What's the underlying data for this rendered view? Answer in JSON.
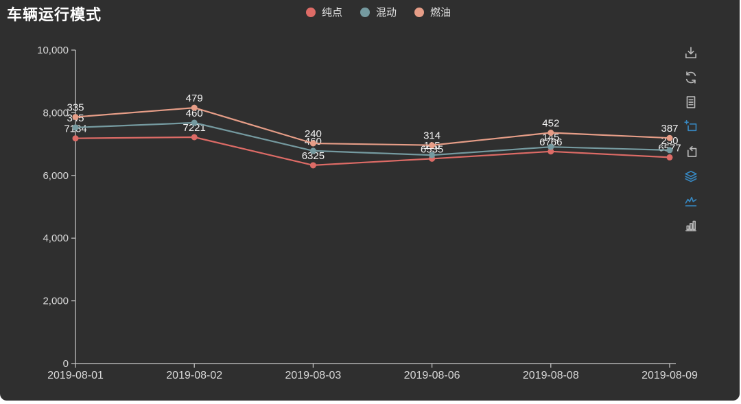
{
  "header": {
    "title": "车辆运行模式"
  },
  "legend": {
    "items": [
      {
        "label": "纯点",
        "color": "#dd6b66"
      },
      {
        "label": "混动",
        "color": "#759aa0"
      },
      {
        "label": "燃油",
        "color": "#e69d87"
      }
    ]
  },
  "toolbar": {
    "active_color": "#3787c0",
    "inactive_color": "#b9b9b9",
    "icons": [
      {
        "name": "save-image-icon",
        "active": false
      },
      {
        "name": "restore-icon",
        "active": false
      },
      {
        "name": "data-view-icon",
        "active": false
      },
      {
        "name": "zoom-select-icon",
        "active": true
      },
      {
        "name": "zoom-reset-icon",
        "active": false
      },
      {
        "name": "stack-toggle-icon",
        "active": true
      },
      {
        "name": "line-chart-icon",
        "active": true
      },
      {
        "name": "bar-chart-icon",
        "active": false
      }
    ]
  },
  "chart_data": {
    "type": "line",
    "stacked": true,
    "title": "车辆运行模式",
    "x": [
      "2019-08-01",
      "2019-08-02",
      "2019-08-03",
      "2019-08-06",
      "2019-08-08",
      "2019-08-09"
    ],
    "series": [
      {
        "name": "纯点",
        "color": "#dd6b66",
        "values": [
          7184,
          7221,
          6325,
          6535,
          6766,
          6577
        ]
      },
      {
        "name": "混动",
        "color": "#759aa0",
        "values": [
          345,
          460,
          460,
          115,
          145,
          230
        ]
      },
      {
        "name": "燃油",
        "color": "#e69d87",
        "values": [
          335,
          479,
          240,
          314,
          452,
          387
        ]
      }
    ],
    "stacked_totals": {
      "纯点": [
        7184,
        7221,
        6325,
        6535,
        6766,
        6577
      ],
      "混动": [
        7529,
        7681,
        6785,
        6650,
        6911,
        6807
      ],
      "燃油": [
        7864,
        8160,
        7025,
        6964,
        7363,
        7194
      ]
    },
    "xlabel": "",
    "ylabel": "",
    "ylim": [
      0,
      10000
    ],
    "y_ticks": [
      "0",
      "2,000",
      "4,000",
      "6,000",
      "8,000",
      "10,000"
    ],
    "grid": false,
    "point_labels": true,
    "legend_position": "top-center",
    "colors": {
      "background": "#2f2f2f",
      "axis_line": "#cccccc",
      "axis_text": "#d9d9d9",
      "point_label_text": "#f3f3f3"
    }
  }
}
